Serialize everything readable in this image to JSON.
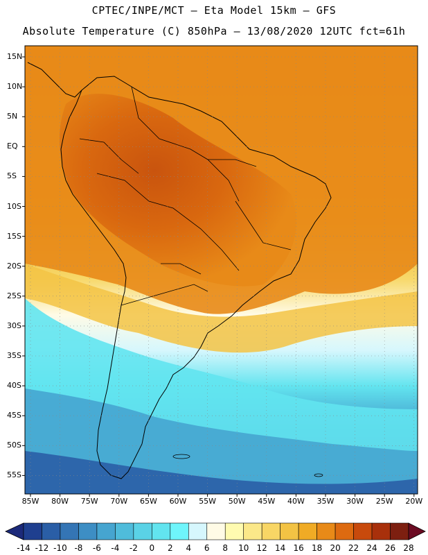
{
  "header": {
    "line1": "CPTEC/INPE/MCT –  Eta Model 15km – GFS",
    "line2": "Absolute Temperature (C) 850hPa – 13/08/2020 12UTC fct=61h"
  },
  "map": {
    "lat_labels": [
      "15N",
      "10N",
      "5N",
      "EQ",
      "5S",
      "10S",
      "15S",
      "20S",
      "25S",
      "30S",
      "35S",
      "40S",
      "45S",
      "50S",
      "55S"
    ],
    "lon_labels": [
      "85W",
      "80W",
      "75W",
      "70W",
      "65W",
      "60W",
      "55W",
      "50W",
      "45W",
      "40W",
      "35W",
      "30W",
      "25W",
      "20W"
    ]
  },
  "colorbar": {
    "labels": [
      "-14",
      "-12",
      "-10",
      "-8",
      "-6",
      "-4",
      "-2",
      "0",
      "2",
      "4",
      "6",
      "8",
      "10",
      "12",
      "14",
      "16",
      "18",
      "20",
      "22",
      "24",
      "26",
      "28"
    ],
    "colors": [
      "#1f3f8f",
      "#2a5ea6",
      "#3475b5",
      "#3d8ec4",
      "#46a5d0",
      "#4fbcdb",
      "#5ad2e6",
      "#62e4ef",
      "#6ff5fb",
      "#d6f7fd",
      "#fffbe6",
      "#fffbb0",
      "#fbe889",
      "#f8d665",
      "#f3c344",
      "#f0ab25",
      "#e88a18",
      "#dd6a10",
      "#c84a0c",
      "#a8300b",
      "#7d1f10"
    ],
    "left_end_color": "#1c2a7a",
    "right_end_color": "#6b0b22"
  }
}
